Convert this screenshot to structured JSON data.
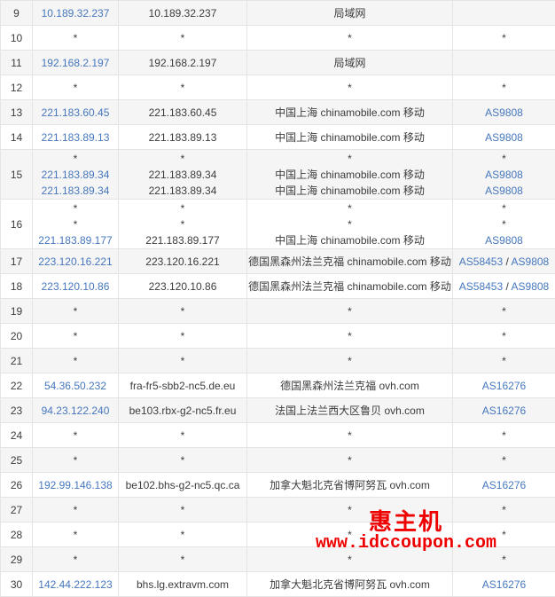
{
  "colors": {
    "link": "#4677bd",
    "row_alt_bg": "#f5f5f5",
    "border": "#e4e4e4",
    "text": "#3c3c3c",
    "watermark": "#ee0000"
  },
  "watermark": {
    "brand": "惠主机",
    "url": "www.idccoupon.com"
  },
  "table": {
    "rows": [
      {
        "hop": "9",
        "lines": [
          {
            "ip": "10.189.32.237",
            "host": "10.189.32.237",
            "loc": "局域网",
            "as": []
          }
        ]
      },
      {
        "hop": "10",
        "lines": [
          {
            "ip": "*",
            "host": "*",
            "loc": "*",
            "as": [
              "*"
            ]
          }
        ]
      },
      {
        "hop": "11",
        "lines": [
          {
            "ip": "192.168.2.197",
            "host": "192.168.2.197",
            "loc": "局域网",
            "as": []
          }
        ]
      },
      {
        "hop": "12",
        "lines": [
          {
            "ip": "*",
            "host": "*",
            "loc": "*",
            "as": [
              "*"
            ]
          }
        ]
      },
      {
        "hop": "13",
        "lines": [
          {
            "ip": "221.183.60.45",
            "host": "221.183.60.45",
            "loc": "中国上海 chinamobile.com 移动",
            "as": [
              "AS9808"
            ]
          }
        ]
      },
      {
        "hop": "14",
        "lines": [
          {
            "ip": "221.183.89.13",
            "host": "221.183.89.13",
            "loc": "中国上海 chinamobile.com 移动",
            "as": [
              "AS9808"
            ]
          }
        ]
      },
      {
        "hop": "15",
        "lines": [
          {
            "ip": "*",
            "host": "*",
            "loc": "*",
            "as": [
              "*"
            ]
          },
          {
            "ip": "221.183.89.34",
            "host": "221.183.89.34",
            "loc": "中国上海 chinamobile.com 移动",
            "as": [
              "AS9808"
            ]
          },
          {
            "ip": "221.183.89.34",
            "host": "221.183.89.34",
            "loc": "中国上海 chinamobile.com 移动",
            "as": [
              "AS9808"
            ]
          }
        ]
      },
      {
        "hop": "16",
        "lines": [
          {
            "ip": "*",
            "host": "*",
            "loc": "*",
            "as": [
              "*"
            ]
          },
          {
            "ip": "*",
            "host": "*",
            "loc": "*",
            "as": [
              "*"
            ]
          },
          {
            "ip": "221.183.89.177",
            "host": "221.183.89.177",
            "loc": "中国上海 chinamobile.com 移动",
            "as": [
              "AS9808"
            ]
          }
        ]
      },
      {
        "hop": "17",
        "lines": [
          {
            "ip": "223.120.16.221",
            "host": "223.120.16.221",
            "loc": "德国黑森州法兰克福 chinamobile.com 移动",
            "as": [
              "AS58453",
              "AS9808"
            ]
          }
        ]
      },
      {
        "hop": "18",
        "lines": [
          {
            "ip": "223.120.10.86",
            "host": "223.120.10.86",
            "loc": "德国黑森州法兰克福 chinamobile.com 移动",
            "as": [
              "AS58453",
              "AS9808"
            ]
          }
        ]
      },
      {
        "hop": "19",
        "lines": [
          {
            "ip": "*",
            "host": "*",
            "loc": "*",
            "as": [
              "*"
            ]
          }
        ]
      },
      {
        "hop": "20",
        "lines": [
          {
            "ip": "*",
            "host": "*",
            "loc": "*",
            "as": [
              "*"
            ]
          }
        ]
      },
      {
        "hop": "21",
        "lines": [
          {
            "ip": "*",
            "host": "*",
            "loc": "*",
            "as": [
              "*"
            ]
          }
        ]
      },
      {
        "hop": "22",
        "lines": [
          {
            "ip": "54.36.50.232",
            "host": "fra-fr5-sbb2-nc5.de.eu",
            "loc": "德国黑森州法兰克福 ovh.com",
            "as": [
              "AS16276"
            ]
          }
        ]
      },
      {
        "hop": "23",
        "lines": [
          {
            "ip": "94.23.122.240",
            "host": "be103.rbx-g2-nc5.fr.eu",
            "loc": "法国上法兰西大区鲁贝 ovh.com",
            "as": [
              "AS16276"
            ]
          }
        ]
      },
      {
        "hop": "24",
        "lines": [
          {
            "ip": "*",
            "host": "*",
            "loc": "*",
            "as": [
              "*"
            ]
          }
        ]
      },
      {
        "hop": "25",
        "lines": [
          {
            "ip": "*",
            "host": "*",
            "loc": "*",
            "as": [
              "*"
            ]
          }
        ]
      },
      {
        "hop": "26",
        "lines": [
          {
            "ip": "192.99.146.138",
            "host": "be102.bhs-g2-nc5.qc.ca",
            "loc": "加拿大魁北克省博阿努瓦 ovh.com",
            "as": [
              "AS16276"
            ]
          }
        ]
      },
      {
        "hop": "27",
        "lines": [
          {
            "ip": "*",
            "host": "*",
            "loc": "*",
            "as": [
              "*"
            ]
          }
        ]
      },
      {
        "hop": "28",
        "lines": [
          {
            "ip": "*",
            "host": "*",
            "loc": "*",
            "as": [
              "*"
            ]
          }
        ]
      },
      {
        "hop": "29",
        "lines": [
          {
            "ip": "*",
            "host": "*",
            "loc": "*",
            "as": [
              "*"
            ]
          }
        ]
      },
      {
        "hop": "30",
        "lines": [
          {
            "ip": "142.44.222.123",
            "host": "bhs.lg.extravm.com",
            "loc": "加拿大魁北克省博阿努瓦 ovh.com",
            "as": [
              "AS16276"
            ]
          }
        ]
      }
    ]
  }
}
